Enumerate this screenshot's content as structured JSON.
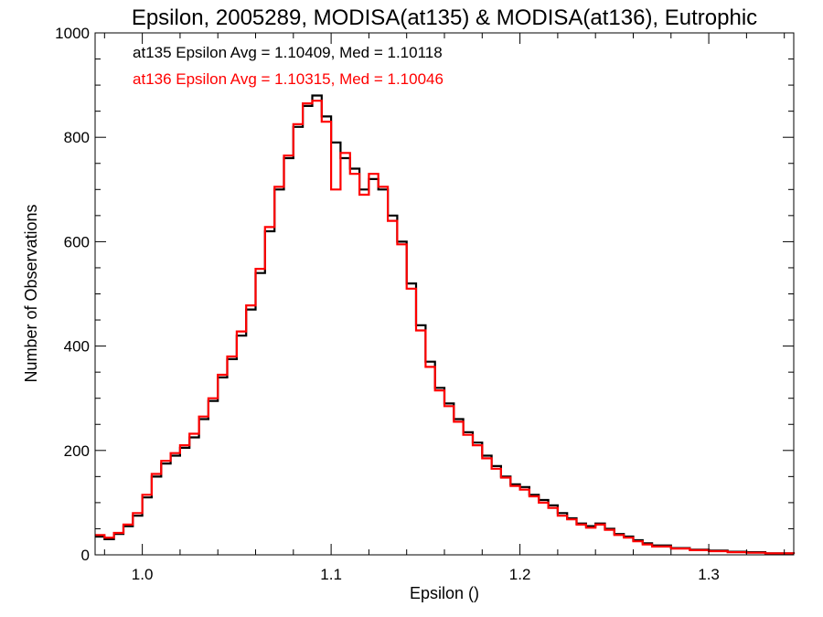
{
  "chart_data": {
    "type": "line",
    "title": "Epsilon, 2005289, MODISA(at135) & MODISA(at136), Eutrophic",
    "xlabel": "Epsilon ()",
    "ylabel": "Number of Observations",
    "xlim": [
      0.975,
      1.345
    ],
    "ylim": [
      0,
      1000
    ],
    "x_ticks": [
      1.0,
      1.1,
      1.2,
      1.3
    ],
    "x_tick_labels": [
      "1.0",
      "1.1",
      "1.2",
      "1.3"
    ],
    "y_ticks": [
      0,
      200,
      400,
      600,
      800,
      1000
    ],
    "y_tick_labels": [
      "0",
      "200",
      "400",
      "600",
      "800",
      "1000"
    ],
    "grid": false,
    "legend_position": "top-left",
    "step": true,
    "annotations": [
      {
        "text": "at135 Epsilon Avg = 1.10409, Med = 1.10118",
        "color": "#000000"
      },
      {
        "text": "at136 Epsilon Avg = 1.10315, Med = 1.10046",
        "color": "#ff0000"
      }
    ],
    "series": [
      {
        "color": "#000000",
        "x": [
          0.975,
          0.98,
          0.985,
          0.99,
          0.995,
          1.0,
          1.005,
          1.01,
          1.015,
          1.02,
          1.025,
          1.03,
          1.035,
          1.04,
          1.045,
          1.05,
          1.055,
          1.06,
          1.065,
          1.07,
          1.075,
          1.08,
          1.085,
          1.09,
          1.095,
          1.1,
          1.105,
          1.11,
          1.115,
          1.12,
          1.125,
          1.13,
          1.135,
          1.14,
          1.145,
          1.15,
          1.155,
          1.16,
          1.165,
          1.17,
          1.175,
          1.18,
          1.185,
          1.19,
          1.195,
          1.2,
          1.205,
          1.21,
          1.215,
          1.22,
          1.225,
          1.23,
          1.235,
          1.24,
          1.245,
          1.25,
          1.255,
          1.26,
          1.265,
          1.27,
          1.28,
          1.29,
          1.3,
          1.31,
          1.32,
          1.33,
          1.345
        ],
        "y": [
          35,
          30,
          40,
          55,
          75,
          110,
          150,
          175,
          190,
          205,
          225,
          260,
          295,
          340,
          375,
          420,
          470,
          540,
          620,
          700,
          760,
          820,
          860,
          880,
          840,
          790,
          760,
          740,
          700,
          720,
          700,
          650,
          600,
          520,
          440,
          370,
          320,
          290,
          260,
          235,
          215,
          190,
          170,
          150,
          135,
          130,
          115,
          105,
          95,
          80,
          70,
          60,
          55,
          60,
          50,
          40,
          35,
          28,
          22,
          18,
          13,
          10,
          8,
          6,
          5,
          3,
          2
        ]
      },
      {
        "color": "#ff0000",
        "x": [
          0.975,
          0.98,
          0.985,
          0.99,
          0.995,
          1.0,
          1.005,
          1.01,
          1.015,
          1.02,
          1.025,
          1.03,
          1.035,
          1.04,
          1.045,
          1.05,
          1.055,
          1.06,
          1.065,
          1.07,
          1.075,
          1.08,
          1.085,
          1.09,
          1.095,
          1.1,
          1.105,
          1.11,
          1.115,
          1.12,
          1.125,
          1.13,
          1.135,
          1.14,
          1.145,
          1.15,
          1.155,
          1.16,
          1.165,
          1.17,
          1.175,
          1.18,
          1.185,
          1.19,
          1.195,
          1.2,
          1.205,
          1.21,
          1.215,
          1.22,
          1.225,
          1.23,
          1.235,
          1.24,
          1.245,
          1.25,
          1.255,
          1.26,
          1.265,
          1.27,
          1.28,
          1.29,
          1.3,
          1.31,
          1.32,
          1.33,
          1.345
        ],
        "y": [
          38,
          33,
          42,
          58,
          80,
          115,
          155,
          180,
          195,
          210,
          232,
          265,
          300,
          345,
          380,
          428,
          478,
          548,
          628,
          705,
          765,
          825,
          865,
          870,
          830,
          700,
          770,
          730,
          690,
          730,
          705,
          640,
          595,
          510,
          430,
          360,
          315,
          285,
          255,
          230,
          210,
          185,
          165,
          148,
          132,
          125,
          112,
          100,
          90,
          75,
          68,
          58,
          52,
          58,
          48,
          38,
          33,
          26,
          20,
          16,
          12,
          9,
          7,
          5,
          4,
          3,
          2
        ]
      }
    ]
  }
}
